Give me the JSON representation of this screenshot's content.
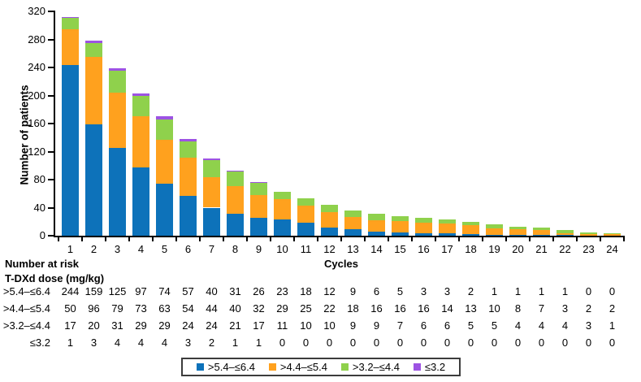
{
  "chart_data": {
    "type": "bar",
    "stacked": true,
    "title": "",
    "xlabel": "Cycles",
    "ylabel": "Number of patients",
    "ylim": [
      0,
      320
    ],
    "ytick_step": 40,
    "grid": false,
    "legend_position": "bottom",
    "categories": [
      "1",
      "2",
      "3",
      "4",
      "5",
      "6",
      "7",
      "8",
      "9",
      "10",
      "11",
      "12",
      "13",
      "14",
      "15",
      "16",
      "17",
      "18",
      "19",
      "20",
      "21",
      "22",
      "23",
      "24"
    ],
    "series": [
      {
        "name": ">5.4–≤6.4",
        "color": "#0d72ba",
        "values": [
          244,
          159,
          125,
          97,
          74,
          57,
          40,
          31,
          26,
          23,
          18,
          12,
          9,
          6,
          5,
          3,
          3,
          2,
          1,
          1,
          1,
          1,
          0,
          0
        ]
      },
      {
        "name": ">4.4–≤5.4",
        "color": "#ffa11e",
        "values": [
          50,
          96,
          79,
          73,
          63,
          54,
          44,
          40,
          32,
          29,
          25,
          22,
          18,
          16,
          16,
          16,
          14,
          13,
          10,
          8,
          7,
          3,
          2,
          2
        ]
      },
      {
        "name": ">3.2–≤4.4",
        "color": "#8fd14c",
        "values": [
          17,
          20,
          31,
          29,
          29,
          24,
          24,
          21,
          17,
          11,
          10,
          10,
          9,
          9,
          7,
          6,
          6,
          5,
          5,
          4,
          4,
          4,
          3,
          1
        ]
      },
      {
        "name": "≤3.2",
        "color": "#9d53e3",
        "values": [
          1,
          3,
          4,
          4,
          4,
          3,
          2,
          1,
          1,
          0,
          0,
          0,
          0,
          0,
          0,
          0,
          0,
          0,
          0,
          0,
          0,
          0,
          0,
          0
        ]
      }
    ]
  },
  "risk_table": {
    "title": "Number at risk",
    "subtitle": "T-DXd dose (mg/kg)"
  }
}
